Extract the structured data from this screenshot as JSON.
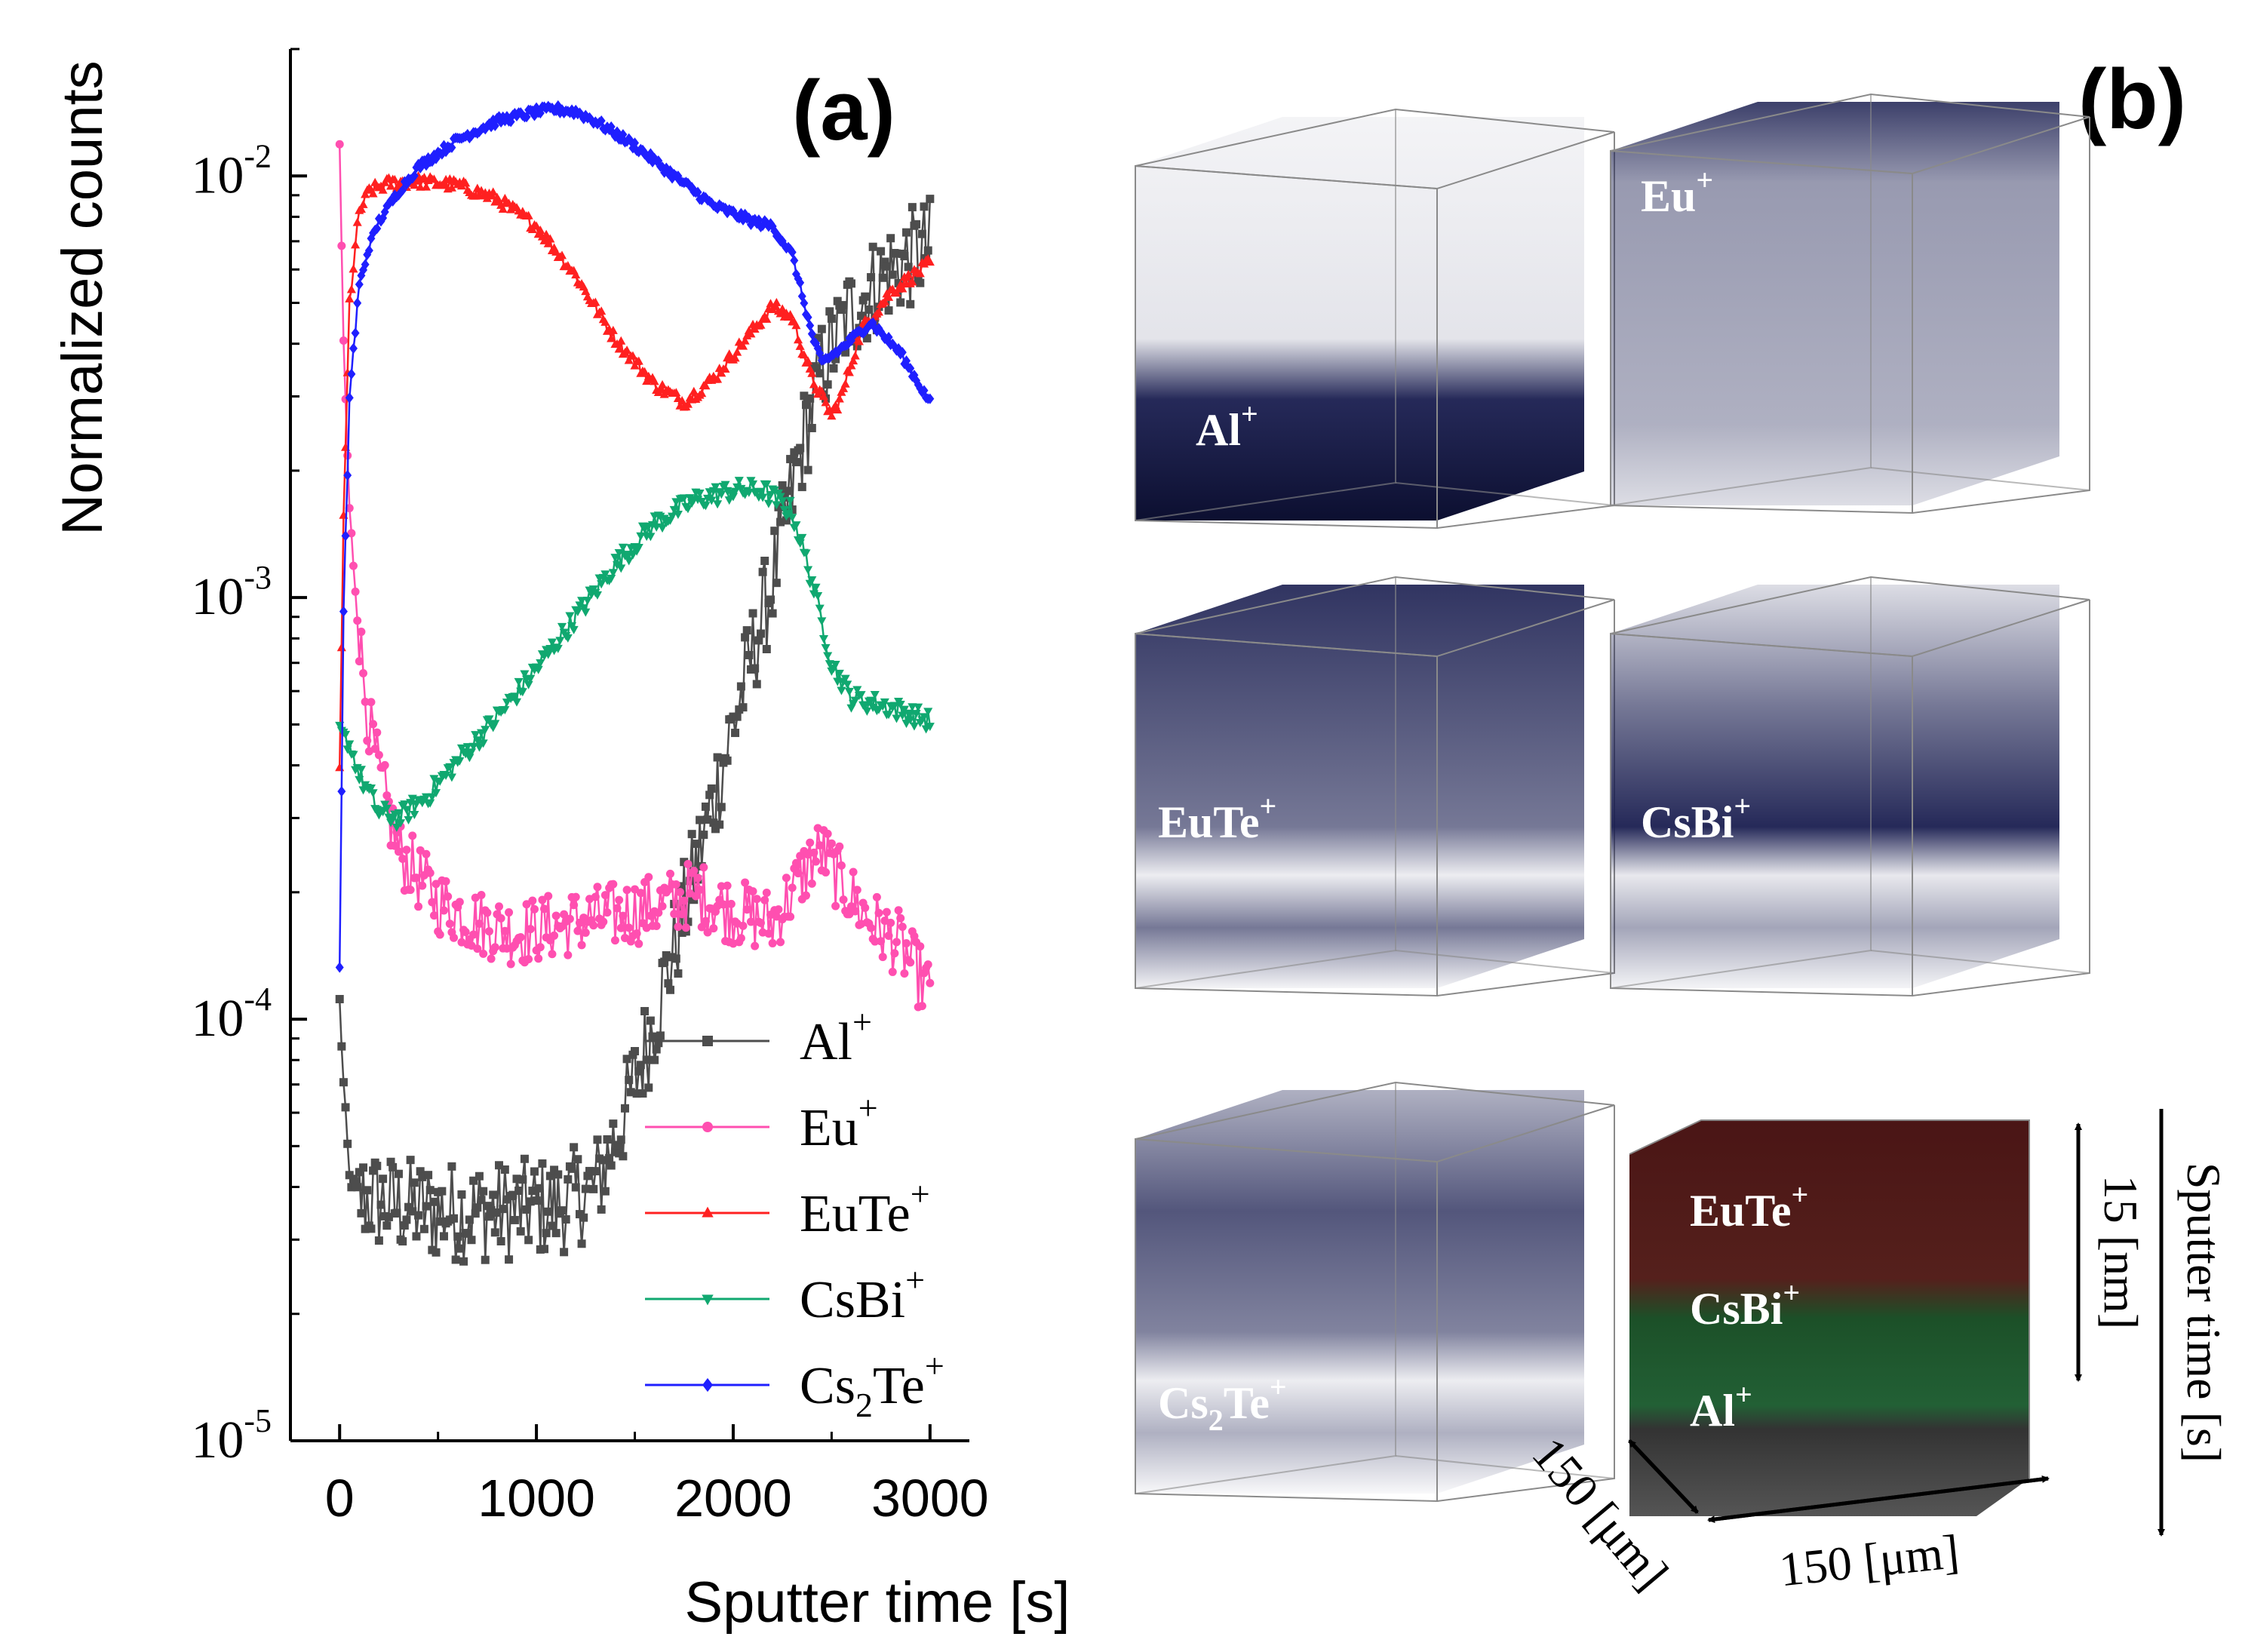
{
  "panel_a": {
    "label": "(a)",
    "legend": [
      {
        "name": "Al",
        "sup": "+",
        "color": "#4d4d4d",
        "marker": "square"
      },
      {
        "name": "Eu",
        "sup": "+",
        "color": "#ff4fb0",
        "marker": "circle"
      },
      {
        "name": "EuTe",
        "sup": "+",
        "color": "#ff2020",
        "marker": "triangle-up"
      },
      {
        "name": "CsBi",
        "sup": "+",
        "color": "#10a870",
        "marker": "triangle-down"
      },
      {
        "name": "Cs",
        "sub": "2",
        "name2": "Te",
        "sup": "+",
        "color": "#1f1fff",
        "marker": "diamond"
      }
    ]
  },
  "chart_data": {
    "type": "line",
    "title": "",
    "xlabel": "Sputter time [s]",
    "ylabel": "Normalized counts",
    "yscale": "log",
    "xlim": [
      -250,
      3200
    ],
    "ylim": [
      1e-05,
      0.02
    ],
    "xticks": [
      0,
      1000,
      2000,
      3000
    ],
    "yticks": [
      {
        "value": 0.01,
        "base": "10",
        "exp": "-2"
      },
      {
        "value": 0.001,
        "base": "10",
        "exp": "-3"
      },
      {
        "value": 0.0001,
        "base": "10",
        "exp": "-4"
      },
      {
        "value": 1e-05,
        "base": "10",
        "exp": "-5"
      }
    ],
    "series": [
      {
        "name": "Al+",
        "color": "#4d4d4d",
        "x": [
          0,
          20,
          50,
          100,
          200,
          300,
          500,
          800,
          1100,
          1300,
          1450,
          1600,
          1800,
          2000,
          2200,
          2350,
          2450,
          2600,
          2800,
          3000
        ],
        "y": [
          0.00011,
          7e-05,
          4.2e-05,
          3.8e-05,
          3.7e-05,
          3.6e-05,
          3.5e-05,
          3.5e-05,
          3.6e-05,
          4e-05,
          6e-05,
          0.0001,
          0.00022,
          0.0005,
          0.0011,
          0.0023,
          0.0035,
          0.0048,
          0.006,
          0.0068
        ]
      },
      {
        "name": "Eu+",
        "color": "#ff4fb0",
        "x": [
          0,
          20,
          50,
          100,
          150,
          200,
          300,
          500,
          700,
          900,
          1200,
          1500,
          1700,
          1800,
          2000,
          2200,
          2300,
          2400,
          2450,
          2550,
          2700,
          2850,
          3000
        ],
        "y": [
          0.0117,
          0.004,
          0.0016,
          0.0008,
          0.0005,
          0.00038,
          0.00025,
          0.00019,
          0.00017,
          0.00016,
          0.00017,
          0.00018,
          0.00019,
          0.0002,
          0.00018,
          0.00017,
          0.0002,
          0.00024,
          0.00025,
          0.00021,
          0.00017,
          0.00015,
          0.000115
        ]
      },
      {
        "name": "EuTe+",
        "color": "#ff2020",
        "x": [
          0,
          20,
          50,
          100,
          150,
          250,
          400,
          600,
          800,
          1000,
          1200,
          1400,
          1600,
          1750,
          1900,
          2100,
          2200,
          2300,
          2400,
          2500,
          2550,
          2650,
          2800,
          3000
        ],
        "y": [
          0.0004,
          0.0015,
          0.005,
          0.0082,
          0.0092,
          0.0096,
          0.0097,
          0.0095,
          0.0088,
          0.0076,
          0.0058,
          0.0041,
          0.0032,
          0.0029,
          0.0033,
          0.0043,
          0.0049,
          0.0046,
          0.0033,
          0.0027,
          0.003,
          0.0043,
          0.0053,
          0.0062
        ]
      },
      {
        "name": "CsBi+",
        "color": "#10a870",
        "x": [
          0,
          50,
          100,
          200,
          300,
          450,
          600,
          800,
          1000,
          1200,
          1400,
          1600,
          1800,
          2000,
          2150,
          2300,
          2400,
          2500,
          2600,
          2800,
          3000
        ],
        "y": [
          0.00048,
          0.00045,
          0.00038,
          0.00031,
          0.0003,
          0.00034,
          0.00041,
          0.00052,
          0.00068,
          0.0009,
          0.0012,
          0.0015,
          0.0017,
          0.0018,
          0.0018,
          0.0016,
          0.0011,
          0.0007,
          0.00058,
          0.00055,
          0.00051
        ]
      },
      {
        "name": "Cs2Te+",
        "color": "#1f1fff",
        "x": [
          0,
          20,
          50,
          100,
          150,
          200,
          300,
          400,
          600,
          800,
          1000,
          1100,
          1200,
          1300,
          1500,
          1700,
          1900,
          2100,
          2200,
          2300,
          2400,
          2450,
          2550,
          2700,
          2850,
          3000
        ],
        "y": [
          0.00013,
          0.0009,
          0.003,
          0.0055,
          0.0068,
          0.0078,
          0.0092,
          0.0105,
          0.0122,
          0.0135,
          0.0142,
          0.0144,
          0.0142,
          0.0135,
          0.0118,
          0.01,
          0.0085,
          0.0078,
          0.0076,
          0.0065,
          0.0042,
          0.0036,
          0.0039,
          0.0045,
          0.0038,
          0.0029
        ]
      }
    ]
  },
  "panel_b": {
    "label": "(b)",
    "cubes": [
      {
        "label": "Al",
        "sup": "+"
      },
      {
        "label": "Eu",
        "sup": "+"
      },
      {
        "label": "EuTe",
        "sup": "+"
      },
      {
        "label": "CsBi",
        "sup": "+"
      },
      {
        "label": "Cs",
        "sub": "2",
        "label2": "Te",
        "sup": "+"
      }
    ],
    "overlay": {
      "layers": [
        {
          "label": "EuTe",
          "sup": "+",
          "color": "#5a1c1c"
        },
        {
          "label": "CsBi",
          "sup": "+",
          "color": "#1f5a2e"
        },
        {
          "label": "Al",
          "sup": "+",
          "color": "#555555"
        }
      ],
      "depth_label": "15 [nm]",
      "side_label": "150 [μm]",
      "width_label": "150 [μm]",
      "axis_label": "Sputter time [s]"
    },
    "cube_color": "#1a1e50"
  }
}
